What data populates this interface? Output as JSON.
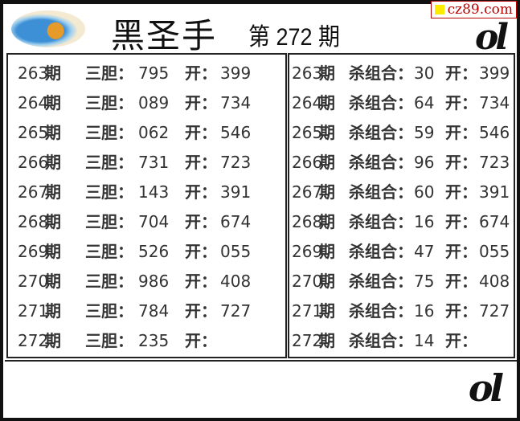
{
  "header": {
    "title": "黑圣手",
    "issue": "第 272 期",
    "watermark": "cz89.com",
    "signature": "ol"
  },
  "labels": {
    "period_suffix": "期",
    "three_dan": "三胆：",
    "kill_combo": "杀组合：",
    "open": "开："
  },
  "left_rows": [
    {
      "period": "263",
      "value": "795",
      "open": "399"
    },
    {
      "period": "264",
      "value": "089",
      "open": "734"
    },
    {
      "period": "265",
      "value": "062",
      "open": "546"
    },
    {
      "period": "266",
      "value": "731",
      "open": "723"
    },
    {
      "period": "267",
      "value": "143",
      "open": "391"
    },
    {
      "period": "268",
      "value": "704",
      "open": "674"
    },
    {
      "period": "269",
      "value": "526",
      "open": "055"
    },
    {
      "period": "270",
      "value": "986",
      "open": "408"
    },
    {
      "period": "271",
      "value": "784",
      "open": "727"
    },
    {
      "period": "272",
      "value": "235",
      "open": ""
    }
  ],
  "right_rows": [
    {
      "period": "263",
      "value": "30",
      "open": "399"
    },
    {
      "period": "264",
      "value": "64",
      "open": "734"
    },
    {
      "period": "265",
      "value": "59",
      "open": "546"
    },
    {
      "period": "266",
      "value": "96",
      "open": "723"
    },
    {
      "period": "267",
      "value": "60",
      "open": "391"
    },
    {
      "period": "268",
      "value": "16",
      "open": "674"
    },
    {
      "period": "269",
      "value": "47",
      "open": "055"
    },
    {
      "period": "270",
      "value": "75",
      "open": "408"
    },
    {
      "period": "271",
      "value": "16",
      "open": "727"
    },
    {
      "period": "272",
      "value": "14",
      "open": ""
    }
  ]
}
